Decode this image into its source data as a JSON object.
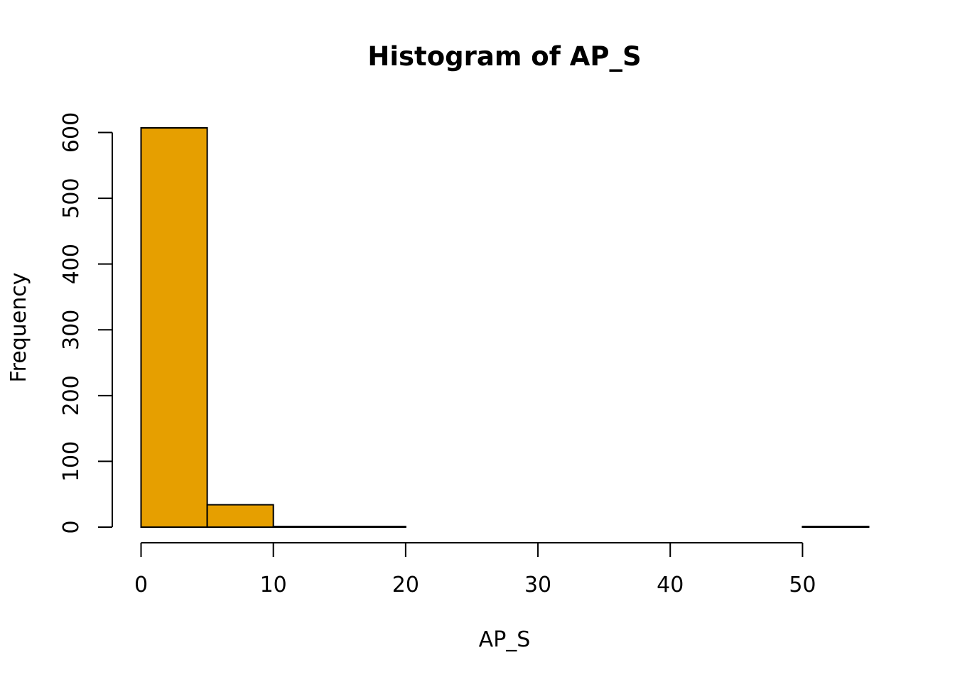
{
  "chart_data": {
    "type": "bar",
    "title": "Histogram of AP_S",
    "xlabel": "AP_S",
    "ylabel": "Frequency",
    "bins": [
      {
        "start": 0,
        "end": 5,
        "count": 607
      },
      {
        "start": 5,
        "end": 10,
        "count": 34
      },
      {
        "start": 10,
        "end": 15,
        "count": 1
      },
      {
        "start": 15,
        "end": 20,
        "count": 1
      },
      {
        "start": 20,
        "end": 25,
        "count": 0
      },
      {
        "start": 25,
        "end": 30,
        "count": 0
      },
      {
        "start": 30,
        "end": 35,
        "count": 0
      },
      {
        "start": 35,
        "end": 40,
        "count": 0
      },
      {
        "start": 40,
        "end": 45,
        "count": 0
      },
      {
        "start": 45,
        "end": 50,
        "count": 0
      },
      {
        "start": 50,
        "end": 55,
        "count": 1
      }
    ],
    "x_ticks": [
      0,
      10,
      20,
      30,
      40,
      50
    ],
    "y_ticks": [
      0,
      100,
      200,
      300,
      400,
      500,
      600
    ],
    "xlim": [
      0,
      55
    ],
    "ylim": [
      0,
      607
    ],
    "bar_color": "#E69F00",
    "grid": false
  }
}
